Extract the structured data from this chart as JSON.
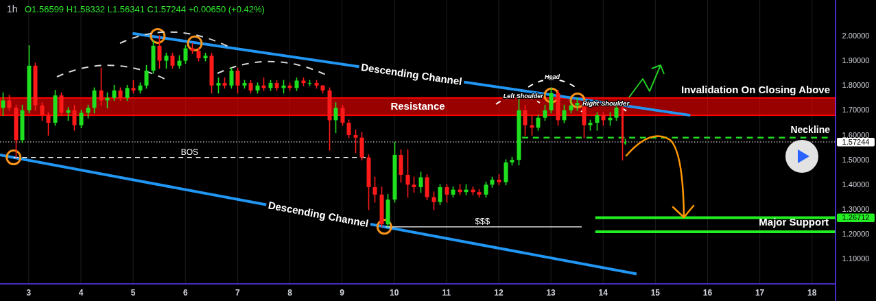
{
  "chart_data": {
    "type": "candlestick",
    "title": "1h",
    "subtitle": "O1.56599 H1.58332 L1.56341 C1.57244 +0.00650 (+0.42%)",
    "x": [
      2.5,
      2.625,
      2.75,
      2.875,
      3,
      3.125,
      3.25,
      3.375,
      3.5,
      3.625,
      3.75,
      3.875,
      4,
      4.125,
      4.25,
      4.375,
      4.5,
      4.625,
      4.75,
      4.875,
      5,
      5.125,
      5.25,
      5.375,
      5.5,
      5.625,
      5.75,
      5.875,
      6,
      6.125,
      6.25,
      6.375,
      6.5,
      6.625,
      6.75,
      6.875,
      7,
      7.125,
      7.25,
      7.375,
      7.5,
      7.625,
      7.75,
      7.875,
      8,
      8.125,
      8.25,
      8.375,
      8.5,
      8.625,
      8.75,
      8.875,
      9,
      9.125,
      9.25,
      9.375,
      9.5,
      9.625,
      9.75,
      9.875,
      10,
      10.125,
      10.25,
      10.375,
      10.5,
      10.625,
      10.75,
      10.875,
      11,
      11.125,
      11.25,
      11.375,
      11.5,
      11.625,
      11.75,
      11.875,
      12,
      12.125,
      12.25,
      12.375,
      12.5,
      12.625,
      12.75,
      12.875,
      13,
      13.125,
      13.25,
      13.375,
      13.5,
      13.625,
      13.75,
      13.875,
      14,
      14.125,
      14.25,
      14.37,
      14.42
    ],
    "ohlc": [
      [
        1.71,
        1.77,
        1.68,
        1.74
      ],
      [
        1.74,
        1.76,
        1.7,
        1.71
      ],
      [
        1.71,
        1.72,
        1.51,
        1.58
      ],
      [
        1.58,
        1.72,
        1.57,
        1.7
      ],
      [
        1.7,
        1.96,
        1.69,
        1.88
      ],
      [
        1.88,
        1.89,
        1.7,
        1.72
      ],
      [
        1.72,
        1.73,
        1.66,
        1.68
      ],
      [
        1.68,
        1.69,
        1.6,
        1.65
      ],
      [
        1.65,
        1.78,
        1.64,
        1.76
      ],
      [
        1.76,
        1.77,
        1.68,
        1.69
      ],
      [
        1.69,
        1.71,
        1.66,
        1.7
      ],
      [
        1.7,
        1.72,
        1.62,
        1.64
      ],
      [
        1.64,
        1.7,
        1.63,
        1.69
      ],
      [
        1.69,
        1.72,
        1.67,
        1.71
      ],
      [
        1.71,
        1.79,
        1.69,
        1.78
      ],
      [
        1.78,
        1.87,
        1.72,
        1.74
      ],
      [
        1.74,
        1.77,
        1.71,
        1.75
      ],
      [
        1.75,
        1.8,
        1.74,
        1.78
      ],
      [
        1.78,
        1.79,
        1.74,
        1.75
      ],
      [
        1.75,
        1.8,
        1.74,
        1.79
      ],
      [
        1.79,
        1.82,
        1.77,
        1.78
      ],
      [
        1.78,
        1.81,
        1.77,
        1.8
      ],
      [
        1.8,
        1.88,
        1.79,
        1.86
      ],
      [
        1.86,
        1.98,
        1.85,
        1.96
      ],
      [
        1.96,
        2.0,
        1.87,
        1.9
      ],
      [
        1.9,
        1.93,
        1.87,
        1.92
      ],
      [
        1.92,
        1.93,
        1.87,
        1.88
      ],
      [
        1.88,
        1.92,
        1.87,
        1.9
      ],
      [
        1.9,
        1.96,
        1.89,
        1.95
      ],
      [
        1.95,
        1.97,
        1.93,
        1.94
      ],
      [
        1.94,
        1.95,
        1.9,
        1.91
      ],
      [
        1.91,
        1.93,
        1.9,
        1.92
      ],
      [
        1.92,
        1.93,
        1.77,
        1.8
      ],
      [
        1.8,
        1.83,
        1.77,
        1.81
      ],
      [
        1.81,
        1.83,
        1.79,
        1.8
      ],
      [
        1.8,
        1.87,
        1.79,
        1.86
      ],
      [
        1.86,
        1.87,
        1.77,
        1.8
      ],
      [
        1.8,
        1.82,
        1.79,
        1.81
      ],
      [
        1.81,
        1.82,
        1.77,
        1.78
      ],
      [
        1.78,
        1.81,
        1.77,
        1.8
      ],
      [
        1.8,
        1.83,
        1.78,
        1.79
      ],
      [
        1.79,
        1.82,
        1.78,
        1.81
      ],
      [
        1.81,
        1.82,
        1.78,
        1.79
      ],
      [
        1.79,
        1.82,
        1.77,
        1.8
      ],
      [
        1.8,
        1.81,
        1.78,
        1.79
      ],
      [
        1.79,
        1.83,
        1.78,
        1.82
      ],
      [
        1.82,
        1.83,
        1.8,
        1.81
      ],
      [
        1.81,
        1.82,
        1.8,
        1.81
      ],
      [
        1.81,
        1.82,
        1.79,
        1.8
      ],
      [
        1.8,
        1.8,
        1.77,
        1.78
      ],
      [
        1.78,
        1.79,
        1.54,
        1.66
      ],
      [
        1.66,
        1.73,
        1.61,
        1.71
      ],
      [
        1.71,
        1.72,
        1.64,
        1.65
      ],
      [
        1.65,
        1.66,
        1.59,
        1.6
      ],
      [
        1.6,
        1.62,
        1.53,
        1.59
      ],
      [
        1.59,
        1.61,
        1.5,
        1.51
      ],
      [
        1.51,
        1.52,
        1.3,
        1.39
      ],
      [
        1.39,
        1.43,
        1.33,
        1.36
      ],
      [
        1.36,
        1.39,
        1.23,
        1.24
      ],
      [
        1.24,
        1.36,
        1.23,
        1.34
      ],
      [
        1.34,
        1.57,
        1.33,
        1.52
      ],
      [
        1.52,
        1.54,
        1.41,
        1.44
      ],
      [
        1.44,
        1.54,
        1.35,
        1.4
      ],
      [
        1.4,
        1.43,
        1.37,
        1.39
      ],
      [
        1.39,
        1.45,
        1.37,
        1.43
      ],
      [
        1.43,
        1.44,
        1.34,
        1.35
      ],
      [
        1.35,
        1.37,
        1.3,
        1.33
      ],
      [
        1.33,
        1.4,
        1.32,
        1.39
      ],
      [
        1.39,
        1.4,
        1.33,
        1.36
      ],
      [
        1.36,
        1.39,
        1.35,
        1.38
      ],
      [
        1.38,
        1.4,
        1.36,
        1.37
      ],
      [
        1.37,
        1.4,
        1.36,
        1.38
      ],
      [
        1.38,
        1.39,
        1.36,
        1.37
      ],
      [
        1.37,
        1.38,
        1.35,
        1.36
      ],
      [
        1.36,
        1.41,
        1.35,
        1.4
      ],
      [
        1.4,
        1.43,
        1.39,
        1.42
      ],
      [
        1.42,
        1.44,
        1.4,
        1.41
      ],
      [
        1.41,
        1.5,
        1.4,
        1.49
      ],
      [
        1.49,
        1.51,
        1.48,
        1.5
      ],
      [
        1.5,
        1.75,
        1.48,
        1.7
      ],
      [
        1.7,
        1.72,
        1.6,
        1.64
      ],
      [
        1.64,
        1.68,
        1.6,
        1.63
      ],
      [
        1.63,
        1.68,
        1.62,
        1.67
      ],
      [
        1.67,
        1.72,
        1.66,
        1.7
      ],
      [
        1.7,
        1.79,
        1.69,
        1.77
      ],
      [
        1.77,
        1.78,
        1.64,
        1.66
      ],
      [
        1.66,
        1.72,
        1.65,
        1.7
      ],
      [
        1.7,
        1.74,
        1.69,
        1.72
      ],
      [
        1.72,
        1.75,
        1.7,
        1.73
      ],
      [
        1.73,
        1.74,
        1.59,
        1.64
      ],
      [
        1.64,
        1.66,
        1.62,
        1.65
      ],
      [
        1.65,
        1.69,
        1.62,
        1.68
      ],
      [
        1.68,
        1.69,
        1.64,
        1.66
      ],
      [
        1.66,
        1.69,
        1.64,
        1.67
      ],
      [
        1.67,
        1.72,
        1.66,
        1.71
      ],
      [
        1.71,
        1.72,
        1.5,
        1.57
      ],
      [
        1.56599,
        1.58332,
        1.56341,
        1.57244
      ]
    ],
    "xlim": [
      2.45,
      18.45
    ],
    "xticks": [
      3,
      4,
      5,
      6,
      7,
      8,
      9,
      10,
      11,
      12,
      13,
      14,
      15,
      16,
      17,
      18
    ],
    "ylim": [
      1.0,
      2.145
    ],
    "yticks": [
      {
        "value": 1.1,
        "label": "1.10000"
      },
      {
        "value": 1.2,
        "label": "1.20000"
      },
      {
        "value": 1.3,
        "label": "1.30000"
      },
      {
        "value": 1.4,
        "label": "1.40000"
      },
      {
        "value": 1.5,
        "label": "1.50000"
      },
      {
        "value": 1.6,
        "label": "1.60000"
      },
      {
        "value": 1.7,
        "label": "1.70000"
      },
      {
        "value": 1.8,
        "label": "1.80000"
      },
      {
        "value": 1.9,
        "label": "1.90000"
      },
      {
        "value": 2.0,
        "label": "2.00000"
      }
    ],
    "grid": "x",
    "series": [
      {
        "type": "line",
        "name": "Descending Channel",
        "color": "#2196f3",
        "x": [
          4.99,
          15.67
        ],
        "values": [
          2.01,
          1.68
        ]
      },
      {
        "type": "line",
        "name": "Descending Channel",
        "color": "#2196f3",
        "x": [
          2.45,
          14.64
        ],
        "values": [
          1.52,
          1.04
        ]
      },
      {
        "type": "line",
        "color": "#ffffff",
        "line_style": "dashed",
        "x": [
          2.71,
          9.45
        ],
        "values": [
          1.51,
          1.51
        ]
      },
      {
        "type": "line",
        "color": "#ffffff",
        "x": [
          9.84,
          13.59
        ],
        "values": [
          1.23,
          1.23
        ]
      },
      {
        "type": "line",
        "color": "#22dd22",
        "line_style": "dashed",
        "x": [
          12.45,
          18.3
        ],
        "values": [
          1.59,
          1.59
        ]
      },
      {
        "type": "line",
        "color": "#22ee22",
        "x": [
          13.85,
          18.45
        ],
        "values": [
          1.26712,
          1.26712
        ],
        "value_labels": [
          null,
          "1.26712"
        ]
      },
      {
        "type": "line",
        "color": "#22ee22",
        "x": [
          13.85,
          18.45
        ],
        "values": [
          1.21,
          1.21
        ]
      },
      {
        "type": "scatter",
        "color": "#f7931a",
        "marker": "circle",
        "x": [
          2.71,
          5.47,
          6.18,
          9.81,
          13.01,
          13.51
        ],
        "values": [
          1.51,
          2.0,
          1.97,
          1.23,
          1.76,
          1.74
        ]
      }
    ],
    "bands": [
      {
        "axis": "y",
        "from": 1.68,
        "to": 1.75,
        "label": "Resistance",
        "color": "#ff0000"
      }
    ],
    "ref_lines": [
      {
        "axis": "y",
        "value": 1.57244,
        "label": "1.57244",
        "color": "#ffffff",
        "line_style": "dotted"
      }
    ],
    "annotations": [
      {
        "text": "BOS",
        "x": 6.08,
        "y": 1.52
      },
      {
        "text": "$$$",
        "x": 11.69,
        "y": 1.24
      },
      "Neckline",
      "Major Support",
      "Invalidation On Closing Above",
      "Head",
      {
        "text": "Left Shoulder",
        "x": 12.47,
        "y": 1.75
      },
      {
        "text": "Right Shoulder",
        "x": 14.05,
        "y": 1.72
      }
    ]
  }
}
